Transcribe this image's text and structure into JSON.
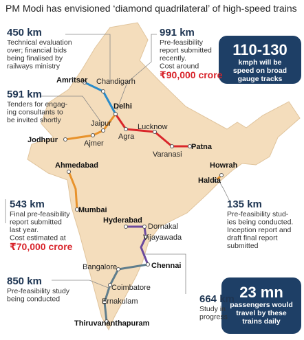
{
  "title": "PM Modi has envisioned ‘diamond quadrilateral’ of high-speed trains",
  "cities": [
    "Amritsar",
    "Chandigarh",
    "Delhi",
    "Jaipur",
    "Jodhpur",
    "Ajmer",
    "Agra",
    "Lucknow",
    "Varanasi",
    "Patna",
    "Ahmedabad",
    "Mumbai",
    "Howrah",
    "Haldia",
    "Hyderabad",
    "Dornakal",
    "Vijayawada",
    "Chennai",
    "Bangalore",
    "Coimbatore",
    "Ernakulam",
    "Thiruvananthapuram"
  ],
  "callouts": [
    {
      "distance": "450 km",
      "lines": [
        "Technical evaluation",
        "over; financial bids",
        "being finalised by",
        "railways ministry"
      ]
    },
    {
      "distance": "991 km",
      "lines": [
        "Pre-feasibility",
        "report submitted",
        "recently.",
        "Cost around"
      ],
      "cost": "₹90,000 crore"
    },
    {
      "distance": "591 km",
      "lines": [
        "Tenders for engag-",
        "ing consultants to",
        "be invited shortly"
      ]
    },
    {
      "distance": "543 km",
      "lines": [
        "Final pre-feasibility",
        "report submitted",
        "last year.",
        "Cost estimated at"
      ],
      "cost": "₹70,000 crore"
    },
    {
      "distance": "135 km",
      "lines": [
        "Pre-feasibility stud-",
        "ies being conducted.",
        "Inception report and",
        "draft final report",
        "submitted"
      ]
    },
    {
      "distance": "850 km",
      "lines": [
        "Pre-feasibility study",
        "being conducted"
      ]
    },
    {
      "distance": "664 km",
      "lines": [
        "Study in",
        "progress"
      ]
    }
  ],
  "badges": [
    {
      "big": "110-130",
      "lines": [
        "kmph will be",
        "speed on broad",
        "gauge tracks"
      ]
    },
    {
      "big": "23 mn",
      "lines": [
        "passengers would",
        "travel by these",
        "trains daily"
      ]
    }
  ]
}
